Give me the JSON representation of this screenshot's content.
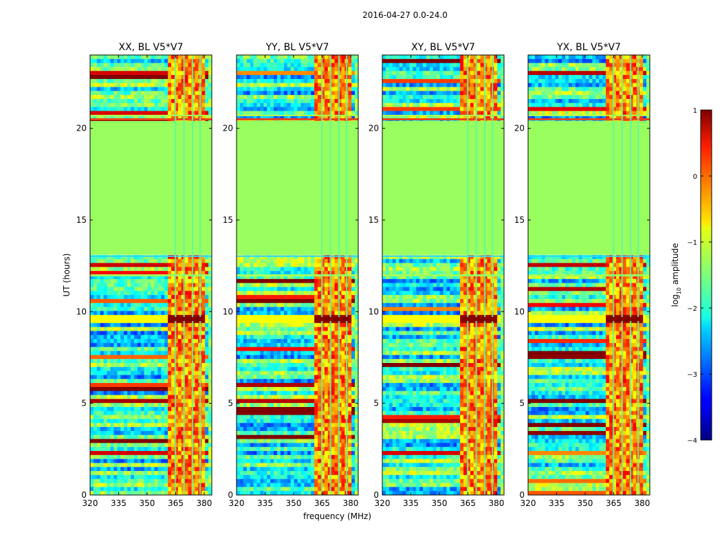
{
  "figure": {
    "suptitle": "2016-04-27 0.0-24.0"
  },
  "chart_data": [
    {
      "type": "heatmap",
      "title": "XX, BL V5*V7",
      "xlabel": "",
      "ylabel": "UT (hours)",
      "x_ticks": [
        "320",
        "335",
        "350",
        "365",
        "380"
      ],
      "y_ticks": [
        "0",
        "5",
        "10",
        "15",
        "20"
      ],
      "xlim": [
        320,
        384
      ],
      "ylim": [
        0,
        24
      ],
      "x_unit": "MHz",
      "y_unit": "hours",
      "no_data_hours": [
        13.1,
        20.4
      ],
      "rfi_band_mhz": [
        360.5,
        380.0
      ],
      "peak_hour": 9.6
    },
    {
      "type": "heatmap",
      "title": "YY, BL V5*V7",
      "xlabel": "frequency (MHz)",
      "ylabel": "",
      "x_ticks": [
        "320",
        "335",
        "350",
        "365",
        "380"
      ],
      "y_ticks": [
        "0",
        "5",
        "10",
        "15",
        "20"
      ],
      "xlim": [
        320,
        384
      ],
      "ylim": [
        0,
        24
      ],
      "x_unit": "MHz",
      "y_unit": "hours",
      "no_data_hours": [
        13.1,
        20.4
      ],
      "rfi_band_mhz": [
        360.5,
        380.0
      ],
      "peak_hour": 9.6
    },
    {
      "type": "heatmap",
      "title": "XY, BL V5*V7",
      "xlabel": "",
      "ylabel": "",
      "x_ticks": [
        "320",
        "335",
        "350",
        "365",
        "380"
      ],
      "y_ticks": [
        "0",
        "5",
        "10",
        "15",
        "20"
      ],
      "xlim": [
        320,
        384
      ],
      "ylim": [
        0,
        24
      ],
      "x_unit": "MHz",
      "y_unit": "hours",
      "no_data_hours": [
        13.1,
        20.4
      ],
      "rfi_band_mhz": [
        360.5,
        380.0
      ],
      "peak_hour": 9.6
    },
    {
      "type": "heatmap",
      "title": "YX, BL V5*V7",
      "xlabel": "",
      "ylabel": "",
      "x_ticks": [
        "320",
        "335",
        "350",
        "365",
        "380"
      ],
      "y_ticks": [
        "0",
        "5",
        "10",
        "15",
        "20"
      ],
      "xlim": [
        320,
        384
      ],
      "ylim": [
        0,
        24
      ],
      "x_unit": "MHz",
      "y_unit": "hours",
      "no_data_hours": [
        13.1,
        20.4
      ],
      "rfi_band_mhz": [
        360.5,
        380.0
      ],
      "peak_hour": 9.6
    }
  ],
  "colorbar": {
    "label_main": "log",
    "label_sub": "10",
    "label_tail": " amplitude",
    "min": -4,
    "max": 1,
    "ticks": [
      "1",
      "0",
      "−1",
      "−2",
      "−3",
      "−4"
    ],
    "colormap": "jet",
    "no_data_color": "#98ff5f"
  }
}
